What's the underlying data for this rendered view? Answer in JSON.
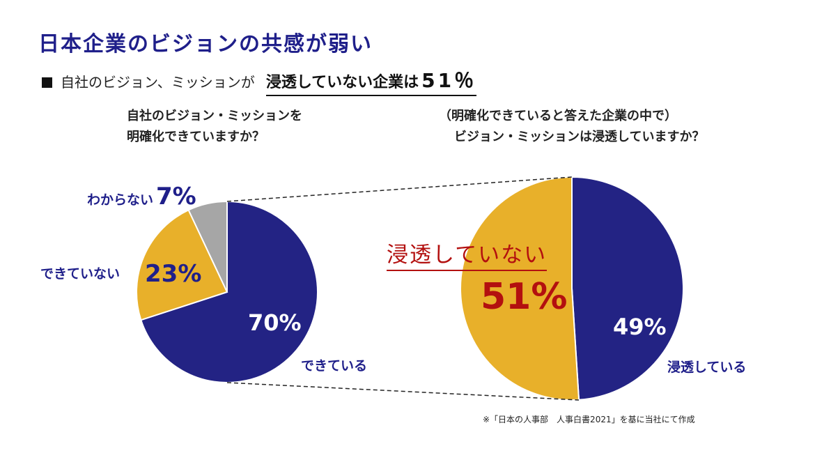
{
  "header": {
    "title": "日本企業のビジョンの共感が弱い",
    "subtitle_prefix": "自社のビジョン、ミッションが",
    "subtitle_emphasis": "浸透していない企業は",
    "subtitle_value": "51％"
  },
  "colors": {
    "navy": "#232384",
    "gold": "#e8b02a",
    "gray": "#a6a6a6",
    "red": "#b3100f"
  },
  "chart_data": [
    {
      "type": "pie",
      "title": "自社のビジョン・ミッションを\n明確化できていますか？",
      "title_lines": [
        "自社のビジョン・ミッションを",
        "明確化できていますか？"
      ],
      "slices": [
        {
          "label": "できている",
          "value": 70,
          "value_label": "70%",
          "color": "#232384"
        },
        {
          "label": "できていない",
          "value": 23,
          "value_label": "23%",
          "color": "#e8b02a"
        },
        {
          "label": "わからない",
          "value": 7,
          "value_label": "7%",
          "color": "#a6a6a6"
        }
      ]
    },
    {
      "type": "pie",
      "title": "（明確化できていると答えた企業の中で）\nビジョン・ミッションは浸透していますか？",
      "title_lines": [
        "（明確化できていると答えた企業の中で）",
        "ビジョン・ミッションは浸透していますか？"
      ],
      "slices": [
        {
          "label": "浸透している",
          "value": 49,
          "value_label": "49%",
          "color": "#232384"
        },
        {
          "label": "浸透していない",
          "value": 51,
          "value_label": "51%",
          "color": "#e8b02a"
        }
      ]
    }
  ],
  "footnote": "※「日本の人事部　人事白書2021」を基に当社にて作成"
}
